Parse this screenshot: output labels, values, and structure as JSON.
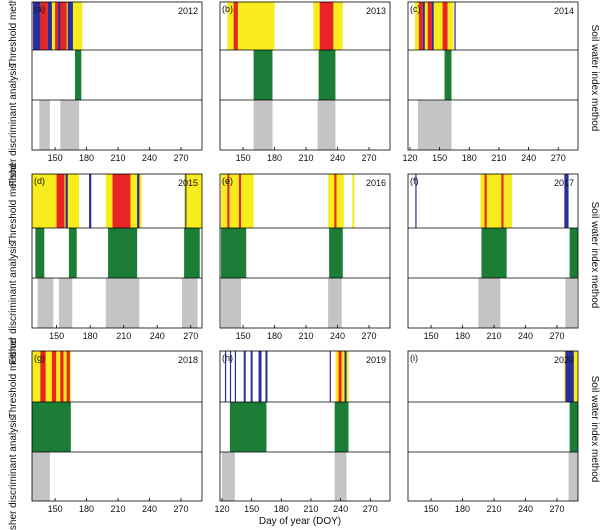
{
  "figure": {
    "x_axis_label": "Day of year (DOY)",
    "row_labels": [
      "Threshold method",
      "Fisher discriminant analysis"
    ],
    "side_label": "Soil water index method"
  },
  "colors": {
    "yellow": "#f8ec1c",
    "red": "#e82424",
    "blue": "#2b2f9c",
    "green": "#1b7d36",
    "gray": "#c4c4c4"
  },
  "chart_data": [
    {
      "type": "timeline",
      "panel": "(a)",
      "year": "2012",
      "x_range": [
        128,
        290
      ],
      "x_ticks": [
        150,
        180,
        210,
        240,
        270
      ],
      "threshold": [
        {
          "c": "yellow",
          "s": 129,
          "e": 176
        },
        {
          "c": "blue",
          "s": 129,
          "e": 136
        },
        {
          "c": "red",
          "s": 136,
          "e": 143
        },
        {
          "c": "blue",
          "s": 143,
          "e": 147
        },
        {
          "c": "red",
          "s": 150,
          "e": 161
        },
        {
          "c": "blue",
          "s": 153,
          "e": 155
        },
        {
          "c": "blue",
          "s": 162,
          "e": 167
        }
      ],
      "fisher_green": [
        {
          "s": 169,
          "e": 175
        }
      ],
      "fisher_gray": [
        {
          "s": 135,
          "e": 145
        },
        {
          "s": 155,
          "e": 173
        }
      ]
    },
    {
      "type": "timeline",
      "panel": "(b)",
      "year": "2013",
      "x_range": [
        128,
        290
      ],
      "x_ticks": [
        150,
        180,
        210,
        240,
        270
      ],
      "threshold": [
        {
          "c": "yellow",
          "s": 135,
          "e": 180
        },
        {
          "c": "red",
          "s": 141,
          "e": 145
        },
        {
          "c": "yellow",
          "s": 217,
          "e": 245
        },
        {
          "c": "red",
          "s": 223,
          "e": 236
        }
      ],
      "fisher_green": [
        {
          "s": 160,
          "e": 178
        },
        {
          "s": 222,
          "e": 238
        }
      ],
      "fisher_gray": [
        {
          "s": 160,
          "e": 178
        },
        {
          "s": 221,
          "e": 238
        }
      ]
    },
    {
      "type": "timeline",
      "panel": "(c)",
      "year": "2014",
      "x_range": [
        118,
        290
      ],
      "x_ticks": [
        120,
        150,
        180,
        210,
        240,
        270
      ],
      "threshold": [
        {
          "c": "yellow",
          "s": 125,
          "e": 164
        },
        {
          "c": "red",
          "s": 129,
          "e": 133
        },
        {
          "c": "blue",
          "s": 133,
          "e": 135
        },
        {
          "c": "red",
          "s": 138,
          "e": 142
        },
        {
          "c": "blue",
          "s": 142,
          "e": 144
        },
        {
          "c": "red",
          "s": 153,
          "e": 158
        },
        {
          "c": "blue",
          "s": 165,
          "e": 166
        }
      ],
      "fisher_green": [
        {
          "s": 155,
          "e": 162
        }
      ],
      "fisher_gray": [
        {
          "s": 128,
          "e": 162
        }
      ]
    },
    {
      "type": "timeline",
      "panel": "(d)",
      "year": "2015",
      "x_range": [
        128,
        280
      ],
      "x_ticks": [
        150,
        180,
        210,
        240,
        270
      ],
      "threshold": [
        {
          "c": "yellow",
          "s": 128,
          "e": 170
        },
        {
          "c": "red",
          "s": 150,
          "e": 157
        },
        {
          "c": "blue",
          "s": 158,
          "e": 160
        },
        {
          "c": "blue",
          "s": 179,
          "e": 181
        },
        {
          "c": "yellow",
          "s": 194,
          "e": 226
        },
        {
          "c": "red",
          "s": 200,
          "e": 216
        },
        {
          "c": "blue",
          "s": 222,
          "e": 224
        },
        {
          "c": "yellow",
          "s": 264,
          "e": 280
        },
        {
          "c": "blue",
          "s": 265,
          "e": 266
        }
      ],
      "fisher_green": [
        {
          "s": 131,
          "e": 139
        },
        {
          "s": 161,
          "e": 168
        },
        {
          "s": 196,
          "e": 222
        },
        {
          "s": 264,
          "e": 278
        }
      ],
      "fisher_gray": [
        {
          "s": 133,
          "e": 147
        },
        {
          "s": 152,
          "e": 164
        },
        {
          "s": 194,
          "e": 224
        },
        {
          "s": 262,
          "e": 276
        }
      ]
    },
    {
      "type": "timeline",
      "panel": "(e)",
      "year": "2016",
      "x_range": [
        128,
        290
      ],
      "x_ticks": [
        150,
        180,
        210,
        240,
        270
      ],
      "threshold": [
        {
          "c": "yellow",
          "s": 129,
          "e": 160
        },
        {
          "c": "red",
          "s": 135,
          "e": 137
        },
        {
          "c": "red",
          "s": 146,
          "e": 148
        },
        {
          "c": "yellow",
          "s": 231,
          "e": 246
        },
        {
          "c": "red",
          "s": 237,
          "e": 239
        },
        {
          "c": "yellow",
          "s": 254,
          "e": 256
        }
      ],
      "fisher_green": [
        {
          "s": 129,
          "e": 153
        },
        {
          "s": 232,
          "e": 245
        }
      ],
      "fisher_gray": [
        {
          "s": 129,
          "e": 148
        },
        {
          "s": 231,
          "e": 244
        }
      ]
    },
    {
      "type": "timeline",
      "panel": "(f)",
      "year": "2017",
      "x_range": [
        128,
        290
      ],
      "x_ticks": [
        150,
        180,
        210,
        240,
        270
      ],
      "threshold": [
        {
          "c": "blue",
          "s": 135,
          "e": 136
        },
        {
          "c": "yellow",
          "s": 197,
          "e": 227
        },
        {
          "c": "red",
          "s": 201,
          "e": 203
        },
        {
          "c": "red",
          "s": 217,
          "e": 219
        },
        {
          "c": "blue",
          "s": 277,
          "e": 281
        }
      ],
      "fisher_green": [
        {
          "s": 198,
          "e": 222
        },
        {
          "s": 282,
          "e": 290
        }
      ],
      "fisher_gray": [
        {
          "s": 195,
          "e": 216
        },
        {
          "s": 278,
          "e": 289
        }
      ]
    },
    {
      "type": "timeline",
      "panel": "(g)",
      "year": "2018",
      "x_range": [
        128,
        290
      ],
      "x_ticks": [
        150,
        180,
        210,
        240,
        270
      ],
      "threshold": [
        {
          "c": "yellow",
          "s": 128,
          "e": 165
        },
        {
          "c": "red",
          "s": 136,
          "e": 141
        },
        {
          "c": "red",
          "s": 147,
          "e": 151
        },
        {
          "c": "red",
          "s": 155,
          "e": 158
        },
        {
          "c": "red",
          "s": 161,
          "e": 164
        }
      ],
      "fisher_green": [
        {
          "s": 128,
          "e": 165
        }
      ],
      "fisher_gray": [
        {
          "s": 128,
          "e": 145
        }
      ]
    },
    {
      "type": "timeline",
      "panel": "(h)",
      "year": "2019",
      "x_range": [
        118,
        290
      ],
      "x_ticks": [
        120,
        150,
        180,
        210,
        240,
        270
      ],
      "threshold": [
        {
          "c": "blue",
          "s": 123,
          "e": 124
        },
        {
          "c": "blue",
          "s": 128,
          "e": 129
        },
        {
          "c": "blue",
          "s": 133,
          "e": 134
        },
        {
          "c": "blue",
          "s": 142,
          "e": 144
        },
        {
          "c": "blue",
          "s": 149,
          "e": 151
        },
        {
          "c": "blue",
          "s": 157,
          "e": 160
        },
        {
          "c": "blue",
          "s": 164,
          "e": 166
        },
        {
          "c": "blue",
          "s": 229,
          "e": 230
        },
        {
          "c": "yellow",
          "s": 235,
          "e": 248
        },
        {
          "c": "red",
          "s": 238,
          "e": 241
        },
        {
          "c": "blue",
          "s": 244,
          "e": 246
        }
      ],
      "fisher_green": [
        {
          "s": 128,
          "e": 165
        },
        {
          "s": 234,
          "e": 248
        }
      ],
      "fisher_gray": [
        {
          "s": 120,
          "e": 133
        },
        {
          "s": 234,
          "e": 246
        }
      ]
    },
    {
      "type": "timeline",
      "panel": "(i)",
      "year": "2020",
      "x_range": [
        128,
        290
      ],
      "x_ticks": [
        150,
        180,
        210,
        240,
        270
      ],
      "threshold": [
        {
          "c": "yellow",
          "s": 277,
          "e": 290
        },
        {
          "c": "blue",
          "s": 278,
          "e": 286
        }
      ],
      "fisher_green": [
        {
          "s": 282,
          "e": 290
        }
      ],
      "fisher_gray": [
        {
          "s": 281,
          "e": 290
        }
      ]
    }
  ]
}
